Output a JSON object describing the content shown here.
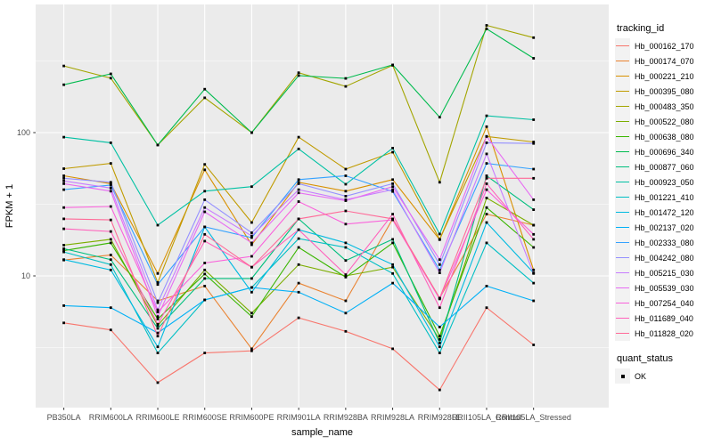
{
  "chart_data": {
    "type": "line",
    "title": "",
    "xlabel": "sample_name",
    "ylabel": "FPKM + 1",
    "y_scale": "log10",
    "y_ticks": [
      10,
      100
    ],
    "y_minor_ticks": [
      3.162,
      31.62,
      316.2
    ],
    "grid": true,
    "panel_bg": "#EBEBEB",
    "grid_color": "#FFFFFF",
    "marker": "black-square",
    "marker_color": "#000000",
    "tick_label_color": "#4D4D4D",
    "legend_position": "right",
    "categories": [
      "PB350LA",
      "RRIM600LA",
      "RRIM600LE",
      "RRIM600SE",
      "RRIM600PE",
      "RRIM901LA",
      "RRIM928BA",
      "RRIM928LA",
      "RRIM928LE",
      "RRII105LA_Control",
      "RRII105LA_Stressed"
    ],
    "legend": {
      "color_title": "tracking_id",
      "shape_title": "quant_status",
      "shape_label": "OK"
    },
    "series": [
      {
        "name": "Hb_000162_170",
        "color": "#F8766D",
        "values": [
          4.7,
          4.2,
          1.8,
          2.9,
          3.0,
          5.1,
          4.1,
          3.1,
          1.6,
          6.0,
          3.3
        ]
      },
      {
        "name": "Hb_000174_070",
        "color": "#EA8331",
        "values": [
          12.9,
          14.0,
          6.7,
          8.5,
          3.1,
          8.9,
          6.7,
          25.0,
          7.0,
          27.0,
          22.6
        ]
      },
      {
        "name": "Hb_000221_210",
        "color": "#D89000",
        "values": [
          50,
          44,
          10.4,
          55,
          16.5,
          45,
          39,
          47,
          17.9,
          110,
          11
        ]
      },
      {
        "name": "Hb_000395_080",
        "color": "#C09B00",
        "values": [
          56,
          61,
          9.0,
          60,
          23.6,
          93,
          55.6,
          73,
          18.0,
          94,
          86
        ]
      },
      {
        "name": "Hb_000483_350",
        "color": "#A3A500",
        "values": [
          292,
          240,
          82,
          175,
          100,
          262,
          210,
          295,
          45,
          560,
          460
        ]
      },
      {
        "name": "Hb_000522_080",
        "color": "#7CAE00",
        "values": [
          16.4,
          18.0,
          4.5,
          11.0,
          5.5,
          12.0,
          10.0,
          11.5,
          3.6,
          35,
          22.6
        ]
      },
      {
        "name": "Hb_000638_080",
        "color": "#39B600",
        "values": [
          15.0,
          17.0,
          5.0,
          10.3,
          5.2,
          15.8,
          9.8,
          17.0,
          3.8,
          30,
          15.8
        ]
      },
      {
        "name": "Hb_000696_340",
        "color": "#00BB4E",
        "values": [
          216,
          257,
          82,
          201,
          100,
          250,
          239,
          297,
          128,
          530,
          330
        ]
      },
      {
        "name": "Hb_000877_060",
        "color": "#00BF7D",
        "values": [
          15.5,
          13.0,
          4.3,
          9.6,
          9.6,
          25,
          12.8,
          18.0,
          3.4,
          50,
          29
        ]
      },
      {
        "name": "Hb_000923_050",
        "color": "#00C1A3",
        "values": [
          93,
          85,
          22.6,
          39,
          42,
          77,
          43.6,
          78,
          19.6,
          131,
          123
        ]
      },
      {
        "name": "Hb_001221_410",
        "color": "#00BFC4",
        "values": [
          14.7,
          12.0,
          2.9,
          6.8,
          8.3,
          18.2,
          15.8,
          10.4,
          2.9,
          17,
          8.9
        ]
      },
      {
        "name": "Hb_001472_120",
        "color": "#00BAE0",
        "values": [
          13.0,
          11.0,
          3.2,
          22,
          7.7,
          21,
          17.0,
          12.0,
          3.2,
          23.6,
          10.5
        ]
      },
      {
        "name": "Hb_002137_020",
        "color": "#00B0F6",
        "values": [
          6.2,
          6.0,
          4.0,
          6.8,
          8.3,
          7.7,
          5.5,
          8.9,
          4.4,
          8.5,
          6.7
        ]
      },
      {
        "name": "Hb_002333_080",
        "color": "#35A2FF",
        "values": [
          40,
          43,
          8.7,
          22,
          18.5,
          47,
          50,
          38.8,
          11.0,
          61,
          55.6
        ]
      },
      {
        "name": "Hb_004242_080",
        "color": "#9590FF",
        "values": [
          48,
          45,
          6.5,
          34,
          20,
          44,
          36,
          44,
          12.0,
          85,
          84
        ]
      },
      {
        "name": "Hb_005215_030",
        "color": "#C77CFF",
        "values": [
          46,
          41,
          5.8,
          30,
          19,
          40,
          34,
          40,
          10.5,
          71,
          10.4
        ]
      },
      {
        "name": "Hb_005539_030",
        "color": "#E76BF3",
        "values": [
          44,
          39,
          5.2,
          28,
          17,
          38,
          33.5,
          42,
          13.0,
          94,
          34
        ]
      },
      {
        "name": "Hb_007254_040",
        "color": "#FA62DB",
        "values": [
          30,
          30.5,
          5.6,
          12.3,
          13.7,
          33,
          23,
          24.6,
          6.9,
          40,
          19.5
        ]
      },
      {
        "name": "Hb_011689_040",
        "color": "#FF62BC",
        "values": [
          21.3,
          20.4,
          4.6,
          17.5,
          11.5,
          21,
          10.2,
          27,
          6.0,
          44,
          18
        ]
      },
      {
        "name": "Hb_011828_020",
        "color": "#FF6A98",
        "values": [
          25,
          24.6,
          3.8,
          19.5,
          11.5,
          25,
          28.4,
          25,
          7.0,
          48,
          48
        ]
      }
    ]
  }
}
